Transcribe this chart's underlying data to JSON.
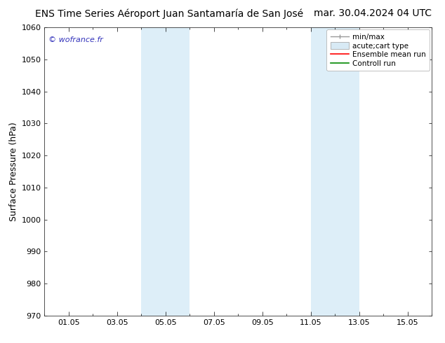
{
  "title": "ENS Time Series Aéroport Juan Santamaría de San José",
  "date_str": "mar. 30.04.2024 04 UTC",
  "ylabel": "Surface Pressure (hPa)",
  "ylim": [
    970,
    1060
  ],
  "yticks": [
    970,
    980,
    990,
    1000,
    1010,
    1020,
    1030,
    1040,
    1050,
    1060
  ],
  "xlim_start": 0.0,
  "xlim_end": 16.0,
  "xtick_labels": [
    "01.05",
    "03.05",
    "05.05",
    "07.05",
    "09.05",
    "11.05",
    "13.05",
    "15.05"
  ],
  "xtick_positions": [
    1,
    3,
    5,
    7,
    9,
    11,
    13,
    15
  ],
  "shade_bands": [
    {
      "xmin": 4.0,
      "xmax": 5.0
    },
    {
      "xmin": 5.0,
      "xmax": 6.0
    },
    {
      "xmin": 11.0,
      "xmax": 12.0
    },
    {
      "xmin": 12.0,
      "xmax": 13.0
    }
  ],
  "shade_color": "#ddeef8",
  "background_color": "#ffffff",
  "watermark": "© wofrance.fr",
  "watermark_color": "#3333bb",
  "legend_labels": [
    "min/max",
    "acute;cart type",
    "Ensemble mean run",
    "Controll run"
  ],
  "legend_line_colors": [
    "#999999",
    "#bbbbbb",
    "#ff0000",
    "#008800"
  ],
  "title_fontsize": 10,
  "date_fontsize": 10,
  "ylabel_fontsize": 9,
  "tick_fontsize": 8,
  "legend_fontsize": 7.5,
  "watermark_fontsize": 8
}
